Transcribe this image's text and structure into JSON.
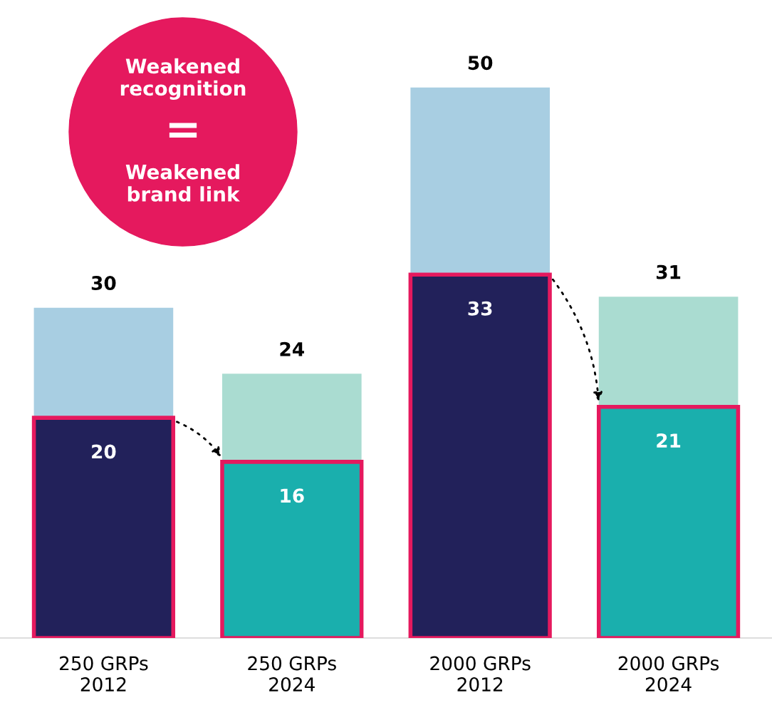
{
  "chart_data": {
    "type": "bar",
    "stacked": true,
    "categories": [
      "250 GRPs\n2012",
      "250 GRPs\n2024",
      "2000 GRPs\n2012",
      "2000 GRPs\n2024"
    ],
    "series": [
      {
        "colors": [
          "#22215a",
          "#1aafad",
          "#22215a",
          "#1aafad"
        ],
        "values": [
          20,
          16,
          33,
          21
        ],
        "value_labels": [
          "20",
          "16",
          "33",
          "21"
        ]
      },
      {
        "colors": [
          "#a8cee2",
          "#aadcd1",
          "#a8cee2",
          "#aadcd1"
        ],
        "values": [
          10,
          8,
          17,
          10
        ]
      }
    ],
    "totals": [
      "30",
      "24",
      "50",
      "31"
    ],
    "grid": false,
    "legend": false,
    "annotations": [
      "Weakened\nrecognition",
      "=",
      "Weakened\nbrand link"
    ]
  }
}
